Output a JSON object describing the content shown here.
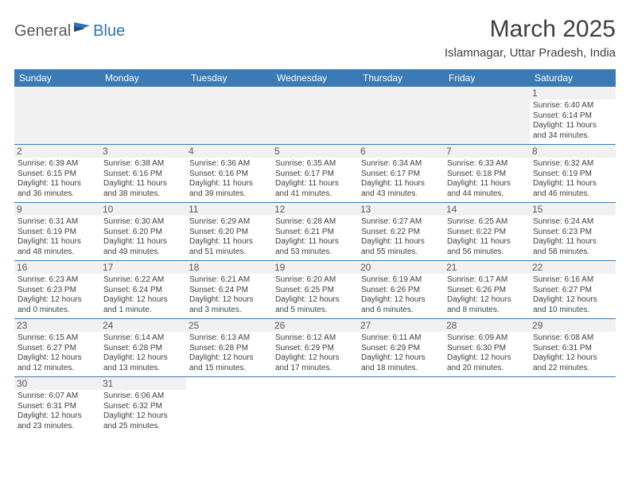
{
  "logo": {
    "general": "General",
    "blue": "Blue"
  },
  "title": "March 2025",
  "location": "Islamnagar, Uttar Pradesh, India",
  "colors": {
    "header_bg": "#3a7ab5",
    "header_fg": "#ffffff",
    "row_divider": "#3a7ab5",
    "shade": "#f1f1f1",
    "text": "#404040",
    "logo_gray": "#5a5a5a",
    "logo_blue": "#2e74b5"
  },
  "dow": [
    "Sunday",
    "Monday",
    "Tuesday",
    "Wednesday",
    "Thursday",
    "Friday",
    "Saturday"
  ],
  "layout": {
    "weeks": 6,
    "lead_blanks": 6
  },
  "days": [
    {
      "n": 1,
      "sunrise": "6:40 AM",
      "sunset": "6:14 PM",
      "day_h": 11,
      "day_m": 34
    },
    {
      "n": 2,
      "sunrise": "6:39 AM",
      "sunset": "6:15 PM",
      "day_h": 11,
      "day_m": 36
    },
    {
      "n": 3,
      "sunrise": "6:38 AM",
      "sunset": "6:16 PM",
      "day_h": 11,
      "day_m": 38
    },
    {
      "n": 4,
      "sunrise": "6:36 AM",
      "sunset": "6:16 PM",
      "day_h": 11,
      "day_m": 39
    },
    {
      "n": 5,
      "sunrise": "6:35 AM",
      "sunset": "6:17 PM",
      "day_h": 11,
      "day_m": 41
    },
    {
      "n": 6,
      "sunrise": "6:34 AM",
      "sunset": "6:17 PM",
      "day_h": 11,
      "day_m": 43
    },
    {
      "n": 7,
      "sunrise": "6:33 AM",
      "sunset": "6:18 PM",
      "day_h": 11,
      "day_m": 44
    },
    {
      "n": 8,
      "sunrise": "6:32 AM",
      "sunset": "6:19 PM",
      "day_h": 11,
      "day_m": 46
    },
    {
      "n": 9,
      "sunrise": "6:31 AM",
      "sunset": "6:19 PM",
      "day_h": 11,
      "day_m": 48
    },
    {
      "n": 10,
      "sunrise": "6:30 AM",
      "sunset": "6:20 PM",
      "day_h": 11,
      "day_m": 49
    },
    {
      "n": 11,
      "sunrise": "6:29 AM",
      "sunset": "6:20 PM",
      "day_h": 11,
      "day_m": 51
    },
    {
      "n": 12,
      "sunrise": "6:28 AM",
      "sunset": "6:21 PM",
      "day_h": 11,
      "day_m": 53
    },
    {
      "n": 13,
      "sunrise": "6:27 AM",
      "sunset": "6:22 PM",
      "day_h": 11,
      "day_m": 55
    },
    {
      "n": 14,
      "sunrise": "6:25 AM",
      "sunset": "6:22 PM",
      "day_h": 11,
      "day_m": 56
    },
    {
      "n": 15,
      "sunrise": "6:24 AM",
      "sunset": "6:23 PM",
      "day_h": 11,
      "day_m": 58
    },
    {
      "n": 16,
      "sunrise": "6:23 AM",
      "sunset": "6:23 PM",
      "day_h": 12,
      "day_m": 0
    },
    {
      "n": 17,
      "sunrise": "6:22 AM",
      "sunset": "6:24 PM",
      "day_h": 12,
      "day_m": 1
    },
    {
      "n": 18,
      "sunrise": "6:21 AM",
      "sunset": "6:24 PM",
      "day_h": 12,
      "day_m": 3
    },
    {
      "n": 19,
      "sunrise": "6:20 AM",
      "sunset": "6:25 PM",
      "day_h": 12,
      "day_m": 5
    },
    {
      "n": 20,
      "sunrise": "6:19 AM",
      "sunset": "6:26 PM",
      "day_h": 12,
      "day_m": 6
    },
    {
      "n": 21,
      "sunrise": "6:17 AM",
      "sunset": "6:26 PM",
      "day_h": 12,
      "day_m": 8
    },
    {
      "n": 22,
      "sunrise": "6:16 AM",
      "sunset": "6:27 PM",
      "day_h": 12,
      "day_m": 10
    },
    {
      "n": 23,
      "sunrise": "6:15 AM",
      "sunset": "6:27 PM",
      "day_h": 12,
      "day_m": 12
    },
    {
      "n": 24,
      "sunrise": "6:14 AM",
      "sunset": "6:28 PM",
      "day_h": 12,
      "day_m": 13
    },
    {
      "n": 25,
      "sunrise": "6:13 AM",
      "sunset": "6:28 PM",
      "day_h": 12,
      "day_m": 15
    },
    {
      "n": 26,
      "sunrise": "6:12 AM",
      "sunset": "6:29 PM",
      "day_h": 12,
      "day_m": 17
    },
    {
      "n": 27,
      "sunrise": "6:11 AM",
      "sunset": "6:29 PM",
      "day_h": 12,
      "day_m": 18
    },
    {
      "n": 28,
      "sunrise": "6:09 AM",
      "sunset": "6:30 PM",
      "day_h": 12,
      "day_m": 20
    },
    {
      "n": 29,
      "sunrise": "6:08 AM",
      "sunset": "6:31 PM",
      "day_h": 12,
      "day_m": 22
    },
    {
      "n": 30,
      "sunrise": "6:07 AM",
      "sunset": "6:31 PM",
      "day_h": 12,
      "day_m": 23
    },
    {
      "n": 31,
      "sunrise": "6:06 AM",
      "sunset": "6:32 PM",
      "day_h": 12,
      "day_m": 25
    }
  ],
  "labels": {
    "sunrise": "Sunrise:",
    "sunset": "Sunset:",
    "daylight": "Daylight:",
    "hours_word": "hours",
    "and_word": "and",
    "minutes_word": "minutes.",
    "minute_word": "minute."
  }
}
